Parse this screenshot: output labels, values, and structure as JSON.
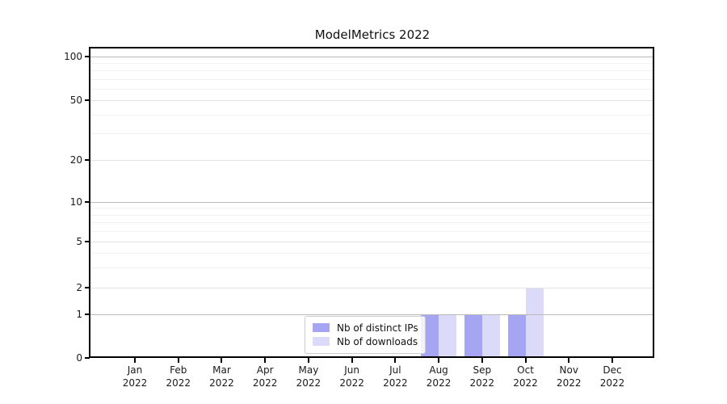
{
  "chart_data": {
    "type": "bar",
    "title": "ModelMetrics 2022",
    "categories": [
      "Jan 2022",
      "Feb 2022",
      "Mar 2022",
      "Apr 2022",
      "May 2022",
      "Jun 2022",
      "Jul 2022",
      "Aug 2022",
      "Sep 2022",
      "Oct 2022",
      "Nov 2022",
      "Dec 2022"
    ],
    "series": [
      {
        "name": "Nb of distinct IPs",
        "color": "#a5a5f3",
        "values": [
          0,
          0,
          0,
          0,
          0,
          0,
          0,
          1,
          1,
          1,
          0,
          0
        ]
      },
      {
        "name": "Nb of downloads",
        "color": "#dbdbf9",
        "values": [
          0,
          0,
          0,
          0,
          0,
          0,
          0,
          1,
          1,
          2,
          0,
          0
        ]
      }
    ],
    "yscale": "symlog",
    "yticks": [
      0,
      1,
      2,
      5,
      10,
      20,
      50,
      100
    ],
    "yticks_minor": [
      3,
      4,
      6,
      7,
      8,
      9,
      30,
      40,
      60,
      70,
      80,
      90
    ],
    "ylim": [
      0,
      110
    ],
    "xlabel": "",
    "ylabel": "",
    "grid": "horizontal major+minor, drawn above bars",
    "legend_position": "lower center"
  },
  "colors": {
    "background": "#ffffff",
    "axis": "#000000",
    "grid_major": "#b9b9b9",
    "grid_mid": "#e3e3e3",
    "grid_minor": "#f1f1f1",
    "legend_border": "#cccccc"
  }
}
